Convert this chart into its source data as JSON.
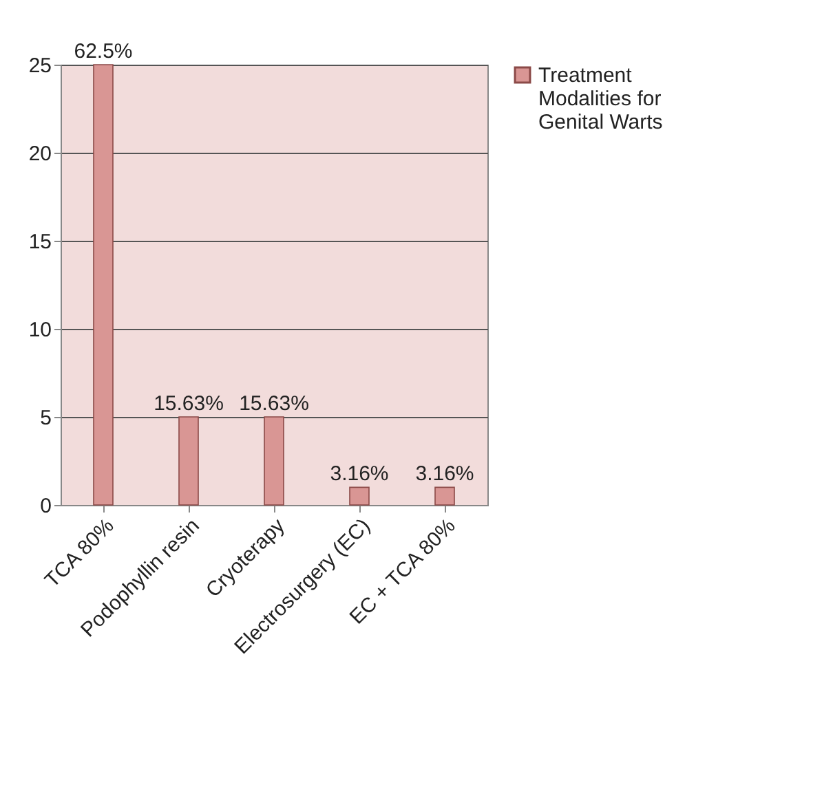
{
  "chart_data": {
    "type": "bar",
    "categories": [
      "TCA 80%",
      "Podophyllin resin",
      "Cryoterapy",
      "Electrosurgery (EC)",
      "EC + TCA 80%"
    ],
    "series": [
      {
        "name": "Treatment Modalities for Genital Warts",
        "color": "#d99694",
        "values": [
          25,
          5,
          5,
          1,
          1
        ]
      }
    ],
    "value_labels": [
      "62.5%",
      "15.63%",
      "15.63%",
      "3.16%",
      "3.16%"
    ],
    "ylim": [
      0,
      25
    ],
    "yticks": [
      0,
      5,
      10,
      15,
      20,
      25
    ],
    "grid": "y",
    "legend": "right"
  }
}
